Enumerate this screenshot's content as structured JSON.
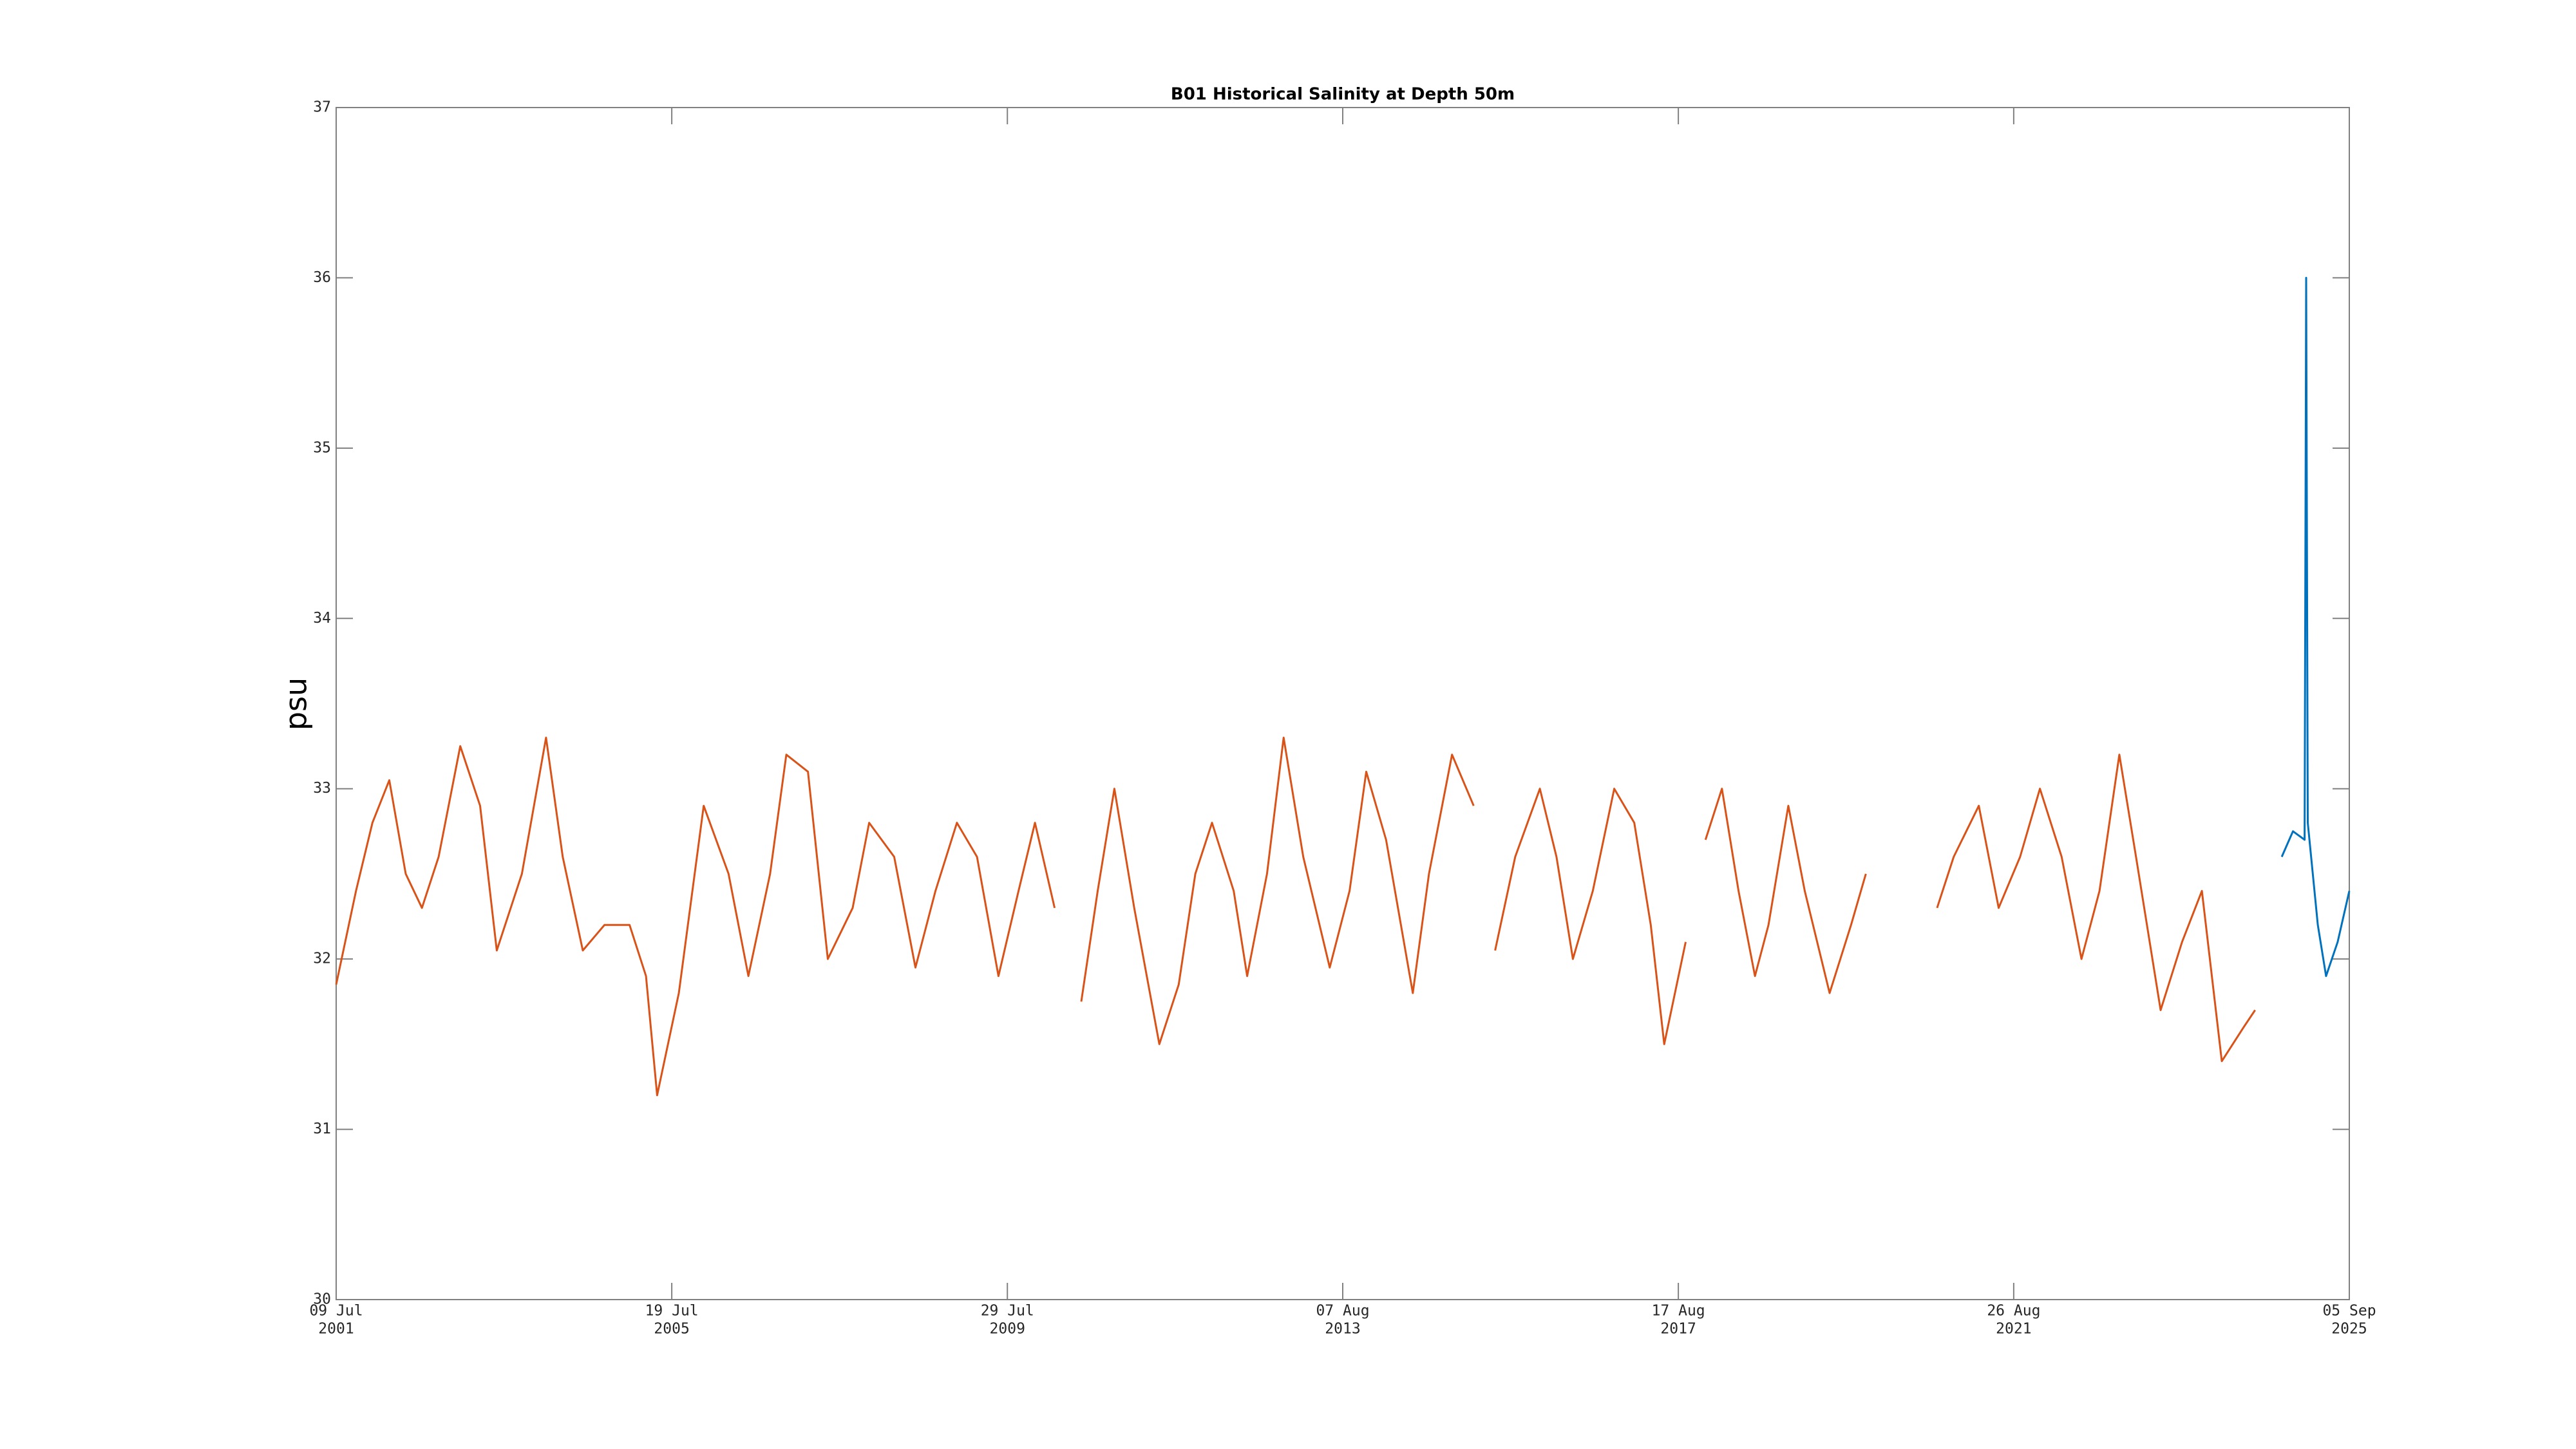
{
  "chart_data": {
    "type": "line",
    "title": "B01 Historical Salinity at Depth 50m",
    "ylabel": "psu",
    "xlim": [
      "2001-07-09",
      "2025-09-05"
    ],
    "xticks": [
      {
        "value": "2001-07-09",
        "label": [
          "09 Jul",
          "2001"
        ]
      },
      {
        "value": "2005-07-19",
        "label": [
          "19 Jul",
          "2005"
        ]
      },
      {
        "value": "2009-07-29",
        "label": [
          "29 Jul",
          "2009"
        ]
      },
      {
        "value": "2013-08-07",
        "label": [
          "07 Aug",
          "2013"
        ]
      },
      {
        "value": "2017-08-17",
        "label": [
          "17 Aug",
          "2017"
        ]
      },
      {
        "value": "2021-08-26",
        "label": [
          "26 Aug",
          "2021"
        ]
      },
      {
        "value": "2025-09-05",
        "label": [
          "05 Sep",
          "2025"
        ]
      }
    ],
    "ylim": [
      30,
      37
    ],
    "yticks": [
      30,
      31,
      32,
      33,
      34,
      35,
      36,
      37
    ],
    "series": [
      {
        "color": "#D95319",
        "x": [
          "2001-07-09",
          "2001-10-04",
          "2001-12-15",
          "2002-02-27",
          "2002-05-10",
          "2002-07-20",
          "2002-10-01",
          "2003-01-04",
          "2003-04-01",
          "2003-06-13",
          "2003-10-01",
          "2004-01-15",
          "2004-03-28",
          "2004-06-24",
          "2004-09-27",
          "2005-01-15",
          "2005-03-28",
          "2005-05-16",
          "2005-08-19",
          "2005-12-06",
          "2006-03-25",
          "2006-06-20",
          "2006-09-23",
          "2006-12-03",
          "2007-03-08",
          "2007-06-03",
          "2007-09-20",
          "2007-12-01",
          "2008-03-20",
          "2008-06-21",
          "2008-09-17",
          "2008-12-20",
          "2009-03-18",
          "2009-06-20",
          "2009-09-16",
          "2009-11-27",
          "2010-02-21",
          "2010-04-15",
          "2010-06-18",
          "2010-08-29",
          "2010-11-10",
          "2011-02-05",
          "2011-05-26",
          "2011-08-19",
          "2011-10-31",
          "2012-01-12",
          "2012-04-16",
          "2012-06-14",
          "2012-09-09",
          "2012-11-21",
          "2013-02-15",
          "2013-06-11",
          "2013-09-06",
          "2013-11-18",
          "2014-02-13",
          "2014-06-10",
          "2014-08-20",
          "2014-11-29",
          "2015-03-04",
          "2015-04-20",
          "2015-06-06",
          "2015-09-02",
          "2015-12-19",
          "2016-03-01",
          "2016-05-12",
          "2016-08-07",
          "2016-11-09",
          "2017-02-05",
          "2017-04-18",
          "2017-06-16",
          "2017-09-18",
          "2017-11-01",
          "2017-12-14",
          "2018-02-24",
          "2018-05-08",
          "2018-07-19",
          "2018-09-16",
          "2018-12-12",
          "2019-02-22",
          "2019-06-11",
          "2019-09-13",
          "2019-11-17",
          "2020-04-15",
          "2020-09-24",
          "2020-12-06",
          "2021-03-26",
          "2021-06-21",
          "2021-09-23",
          "2021-12-19",
          "2022-03-24",
          "2022-06-19",
          "2022-09-06",
          "2022-12-02",
          "2023-02-13",
          "2023-06-01",
          "2023-09-03",
          "2023-11-29",
          "2024-02-24",
          "2024-05-30",
          "2024-07-19"
        ],
        "values": [
          31.85,
          32.4,
          32.8,
          33.05,
          32.5,
          32.3,
          32.6,
          33.25,
          32.9,
          32.05,
          32.5,
          33.3,
          32.6,
          32.05,
          32.2,
          32.2,
          31.9,
          31.2,
          31.8,
          32.9,
          32.5,
          31.9,
          32.5,
          33.2,
          33.1,
          32.0,
          32.3,
          32.8,
          32.6,
          31.95,
          32.4,
          32.8,
          32.6,
          31.9,
          32.4,
          32.8,
          32.3,
          null,
          31.75,
          32.4,
          33.0,
          32.3,
          31.5,
          31.85,
          32.5,
          32.8,
          32.4,
          31.9,
          32.5,
          33.3,
          32.6,
          31.95,
          32.4,
          33.1,
          32.7,
          31.8,
          32.5,
          33.2,
          32.9,
          null,
          32.05,
          32.6,
          33.0,
          32.6,
          32.0,
          32.4,
          33.0,
          32.8,
          32.2,
          31.5,
          32.1,
          null,
          32.7,
          33.0,
          32.4,
          31.9,
          32.2,
          32.9,
          32.4,
          31.8,
          32.2,
          32.5,
          null,
          32.3,
          32.6,
          32.9,
          32.3,
          32.6,
          33.0,
          32.6,
          32.0,
          32.4,
          33.2,
          32.6,
          31.7,
          32.1,
          32.4,
          31.4,
          31.6,
          31.7
        ]
      },
      {
        "color": "#0072BD",
        "x": [
          "2024-11-13",
          "2025-01-01",
          "2025-02-21",
          "2025-02-28",
          "2025-03-07",
          "2025-04-20",
          "2025-05-26",
          "2025-07-16",
          "2025-09-05"
        ],
        "values": [
          32.6,
          32.75,
          32.7,
          36.0,
          32.8,
          32.2,
          31.9,
          32.1,
          32.4
        ]
      }
    ]
  }
}
